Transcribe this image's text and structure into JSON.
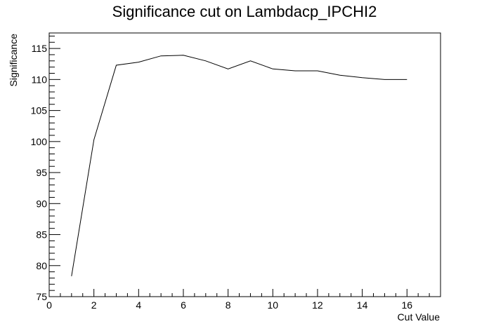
{
  "chart_data": {
    "type": "line",
    "title": "Significance cut on Lambdacp_IPCHI2",
    "xlabel": "Cut Value",
    "ylabel": "Significance",
    "xlim": [
      0,
      17.5
    ],
    "ylim": [
      75,
      117.5
    ],
    "x_ticks": [
      0,
      2,
      4,
      6,
      8,
      10,
      12,
      14,
      16
    ],
    "y_ticks": [
      75,
      80,
      85,
      90,
      95,
      100,
      105,
      110,
      115
    ],
    "grid": false,
    "series": [
      {
        "x": [
          1,
          2,
          3,
          4,
          5,
          6,
          7,
          8,
          9,
          10,
          11,
          12,
          13,
          14,
          15,
          16
        ],
        "y": [
          78.3,
          100.3,
          112.3,
          112.8,
          113.8,
          113.9,
          113.0,
          111.7,
          113.0,
          111.7,
          111.4,
          111.4,
          110.7,
          110.3,
          110.0,
          110.0
        ]
      }
    ]
  }
}
